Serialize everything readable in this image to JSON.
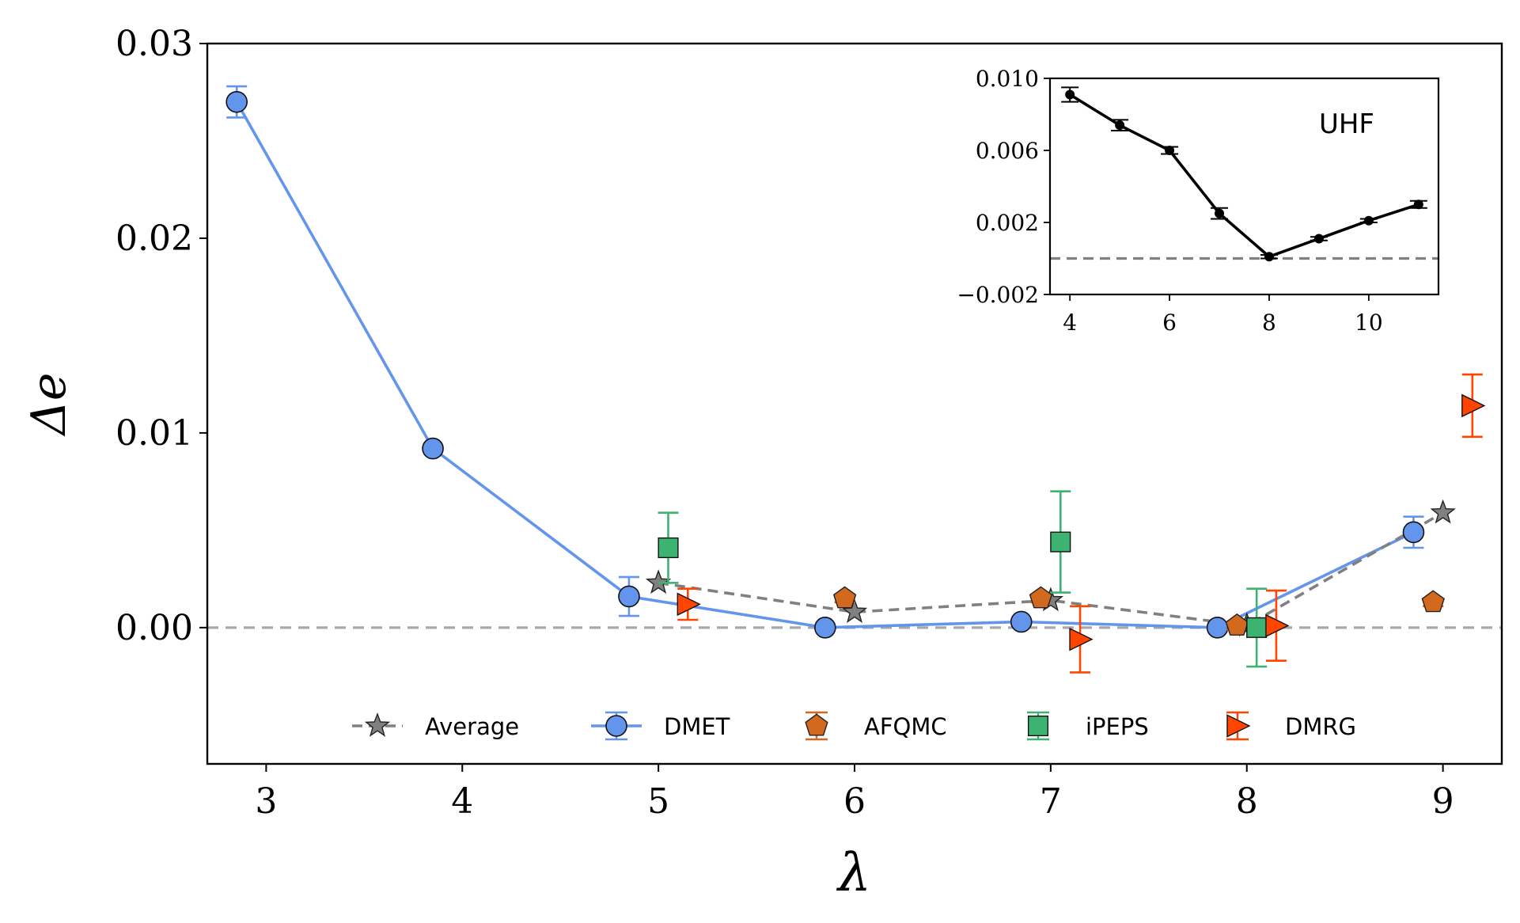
{
  "chart_data": [
    {
      "type": "scatter",
      "title": "",
      "xlabel": "λ",
      "ylabel": "Δe",
      "xlim": [
        2.7,
        9.3
      ],
      "ylim": [
        -0.007,
        0.03
      ],
      "x_ticks": [
        3,
        4,
        5,
        6,
        7,
        8,
        9
      ],
      "x_tick_labels": [
        "3",
        "4",
        "5",
        "6",
        "7",
        "8",
        "9"
      ],
      "y_ticks": [
        0.0,
        0.01,
        0.02,
        0.03
      ],
      "y_tick_labels": [
        "0.00",
        "0.01",
        "0.02",
        "0.03"
      ],
      "reference_line": 0,
      "legend": [
        "Average",
        "DMET",
        "AFQMC",
        "iPEPS",
        "DMRG"
      ],
      "legend_position": "bottom-center",
      "series": [
        {
          "name": "Average",
          "color": "#808080",
          "marker": "star",
          "line": "dashed",
          "x": [
            5,
            6,
            7,
            8,
            9
          ],
          "y": [
            0.0023,
            0.0008,
            0.0014,
            0.0001,
            0.0059
          ],
          "err": [
            0,
            0,
            0,
            0,
            0
          ]
        },
        {
          "name": "DMET",
          "color": "#6495ED",
          "marker": "circle",
          "line": "solid",
          "x": [
            2.85,
            3.85,
            4.85,
            5.85,
            6.85,
            7.85,
            8.85
          ],
          "y": [
            0.027,
            0.0092,
            0.0016,
            0.0,
            0.0003,
            0.0,
            0.0049
          ],
          "err": [
            0.0008,
            0.0001,
            0.001,
            0.0001,
            0.0001,
            0.0001,
            0.0008
          ]
        },
        {
          "name": "AFQMC",
          "color": "#D2691E",
          "marker": "pentagon",
          "line": "none",
          "x": [
            5.95,
            6.95,
            7.95,
            8.95
          ],
          "y": [
            0.0015,
            0.0015,
            0.0001,
            0.0013
          ],
          "err": [
            0.0002,
            0.0002,
            0.0002,
            0.0002
          ]
        },
        {
          "name": "iPEPS",
          "color": "#3CB371",
          "marker": "square",
          "line": "none",
          "x": [
            5.05,
            7.05,
            8.05
          ],
          "y": [
            0.0041,
            0.0044,
            0.0
          ],
          "err": [
            0.0018,
            0.0026,
            0.002
          ]
        },
        {
          "name": "DMRG",
          "color": "#FF4500",
          "marker": "triangle-right",
          "line": "none",
          "x": [
            5.15,
            7.15,
            8.15,
            9.15
          ],
          "y": [
            0.0012,
            -0.0006,
            0.0001,
            0.0114
          ],
          "err": [
            0.0008,
            0.0017,
            0.0018,
            0.0016
          ]
        }
      ]
    },
    {
      "type": "line",
      "title": "UHF",
      "xlabel": "",
      "ylabel": "",
      "xlim": [
        3.6,
        11.4
      ],
      "ylim": [
        -0.002,
        0.01
      ],
      "x_ticks": [
        4,
        6,
        8,
        10
      ],
      "x_tick_labels": [
        "4",
        "6",
        "8",
        "10"
      ],
      "y_ticks": [
        -0.002,
        0.002,
        0.006,
        0.01
      ],
      "y_tick_labels": [
        "−0.002",
        "0.002",
        "0.006",
        "0.010"
      ],
      "reference_line": 0,
      "series": [
        {
          "name": "UHF",
          "color": "#000000",
          "marker": "circle",
          "line": "solid",
          "x": [
            4,
            5,
            6,
            7,
            8,
            9,
            10,
            11
          ],
          "y": [
            0.0091,
            0.0074,
            0.006,
            0.0025,
            0.0001,
            0.0011,
            0.0021,
            0.003
          ],
          "err": [
            0.0004,
            0.0003,
            0.0002,
            0.0003,
            0.0001,
            0.0001,
            0.0001,
            0.0002
          ]
        }
      ]
    }
  ]
}
